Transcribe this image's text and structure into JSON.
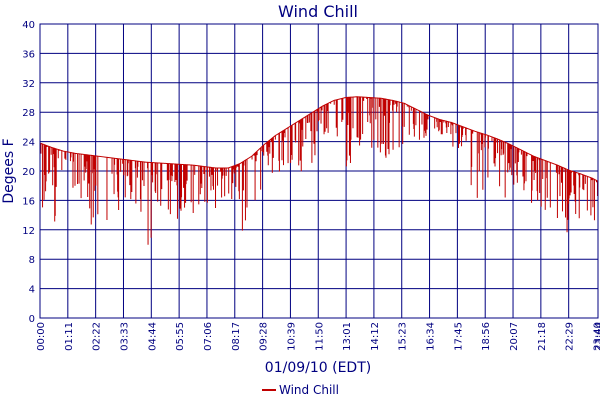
{
  "chart_data": {
    "type": "line",
    "title": "Wind Chill",
    "xlabel": "01/09/10 (EDT)",
    "ylabel": "Degees F",
    "ylim": [
      0,
      40
    ],
    "yticks": [
      "0",
      "4",
      "8",
      "12",
      "16",
      "20",
      "24",
      "28",
      "32",
      "36",
      "40"
    ],
    "xticks": [
      "00:00",
      "01:11",
      "02:22",
      "03:33",
      "04:44",
      "05:55",
      "07:06",
      "08:17",
      "09:28",
      "10:39",
      "11:50",
      "13:01",
      "14:12",
      "15:23",
      "16:34",
      "17:45",
      "18:56",
      "20:07",
      "21:18",
      "22:29",
      "23:40",
      "23:44"
    ],
    "grid": true,
    "legend_position": "bottom",
    "colors": {
      "series": "#c00000",
      "grid": "#000080",
      "text": "#000080"
    },
    "series": [
      {
        "name": "Wind Chill",
        "x_hours": [
          0,
          0.5,
          1,
          1.5,
          2,
          2.5,
          3,
          3.5,
          4,
          4.5,
          5,
          5.5,
          6,
          6.5,
          7,
          7.5,
          8,
          8.5,
          9,
          9.5,
          10,
          10.5,
          11,
          11.5,
          12,
          12.5,
          13,
          13.5,
          14,
          14.5,
          15,
          15.5,
          16,
          16.5,
          17,
          17.5,
          18,
          18.5,
          19,
          19.5,
          20,
          20.5,
          21,
          21.5,
          22,
          22.5,
          23,
          23.5,
          23.73
        ],
        "envelope": [
          23.8,
          23.2,
          22.7,
          22.4,
          22.2,
          22.0,
          21.8,
          21.6,
          21.4,
          21.2,
          21.1,
          21.0,
          20.9,
          20.8,
          20.6,
          20.4,
          20.4,
          21.0,
          22.0,
          23.5,
          24.8,
          25.8,
          26.8,
          27.8,
          28.8,
          29.6,
          30.0,
          30.1,
          30.0,
          29.9,
          29.6,
          29.2,
          28.4,
          27.6,
          27.0,
          26.6,
          26.0,
          25.4,
          24.9,
          24.3,
          23.6,
          22.8,
          22.0,
          21.4,
          20.8,
          20.1,
          19.6,
          19.0,
          18.6
        ],
        "dip_min": [
          14,
          11,
          15,
          18,
          11,
          13,
          13,
          14,
          13,
          8.3,
          10,
          9,
          12,
          14,
          13,
          14,
          16,
          11,
          9,
          16,
          19,
          20,
          19,
          21,
          21,
          25,
          20,
          22,
          23,
          21,
          21,
          24,
          22,
          24,
          25,
          23,
          23,
          15,
          17,
          18,
          15,
          14,
          16,
          14,
          8,
          11,
          12,
          13,
          12
        ]
      }
    ]
  }
}
